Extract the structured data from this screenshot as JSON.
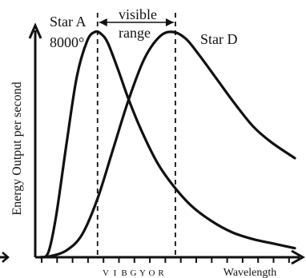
{
  "chart_data": {
    "type": "line",
    "title": "",
    "xlabel": "Wavelength",
    "ylabel": "Energy Output per second",
    "x_tick_labels": [
      "V",
      "I",
      "B",
      "G",
      "Y",
      "O",
      "R"
    ],
    "x_units": "",
    "y_units": "",
    "grid": false,
    "annotations": {
      "visible_range_line1": "visible",
      "visible_range_line2": "range",
      "star_a_name": "Star A",
      "star_a_temp": "8000°",
      "star_d_name": "Star D"
    },
    "series": [
      {
        "name": "Star A",
        "x": [
          0.02,
          0.05,
          0.08,
          0.12,
          0.16,
          0.2,
          0.23,
          0.255,
          0.28,
          0.32,
          0.36,
          0.41,
          0.47,
          0.53,
          0.6,
          0.68,
          0.76,
          0.84,
          0.92,
          1.0
        ],
        "y": [
          0.0,
          0.02,
          0.18,
          0.5,
          0.8,
          0.96,
          1.0,
          0.99,
          0.95,
          0.83,
          0.7,
          0.56,
          0.42,
          0.32,
          0.23,
          0.16,
          0.11,
          0.08,
          0.06,
          0.04
        ]
      },
      {
        "name": "Star D",
        "x": [
          0.02,
          0.06,
          0.12,
          0.18,
          0.24,
          0.3,
          0.36,
          0.42,
          0.48,
          0.53,
          0.58,
          0.63,
          0.7,
          0.77,
          0.84,
          0.91,
          1.0
        ],
        "y": [
          0.0,
          0.005,
          0.03,
          0.1,
          0.26,
          0.48,
          0.7,
          0.88,
          0.98,
          1.0,
          0.97,
          0.9,
          0.79,
          0.68,
          0.58,
          0.51,
          0.44
        ]
      }
    ],
    "visible_range": [
      0.24,
      0.54
    ],
    "xlim": [
      0,
      1
    ],
    "ylim": [
      0,
      1
    ]
  }
}
